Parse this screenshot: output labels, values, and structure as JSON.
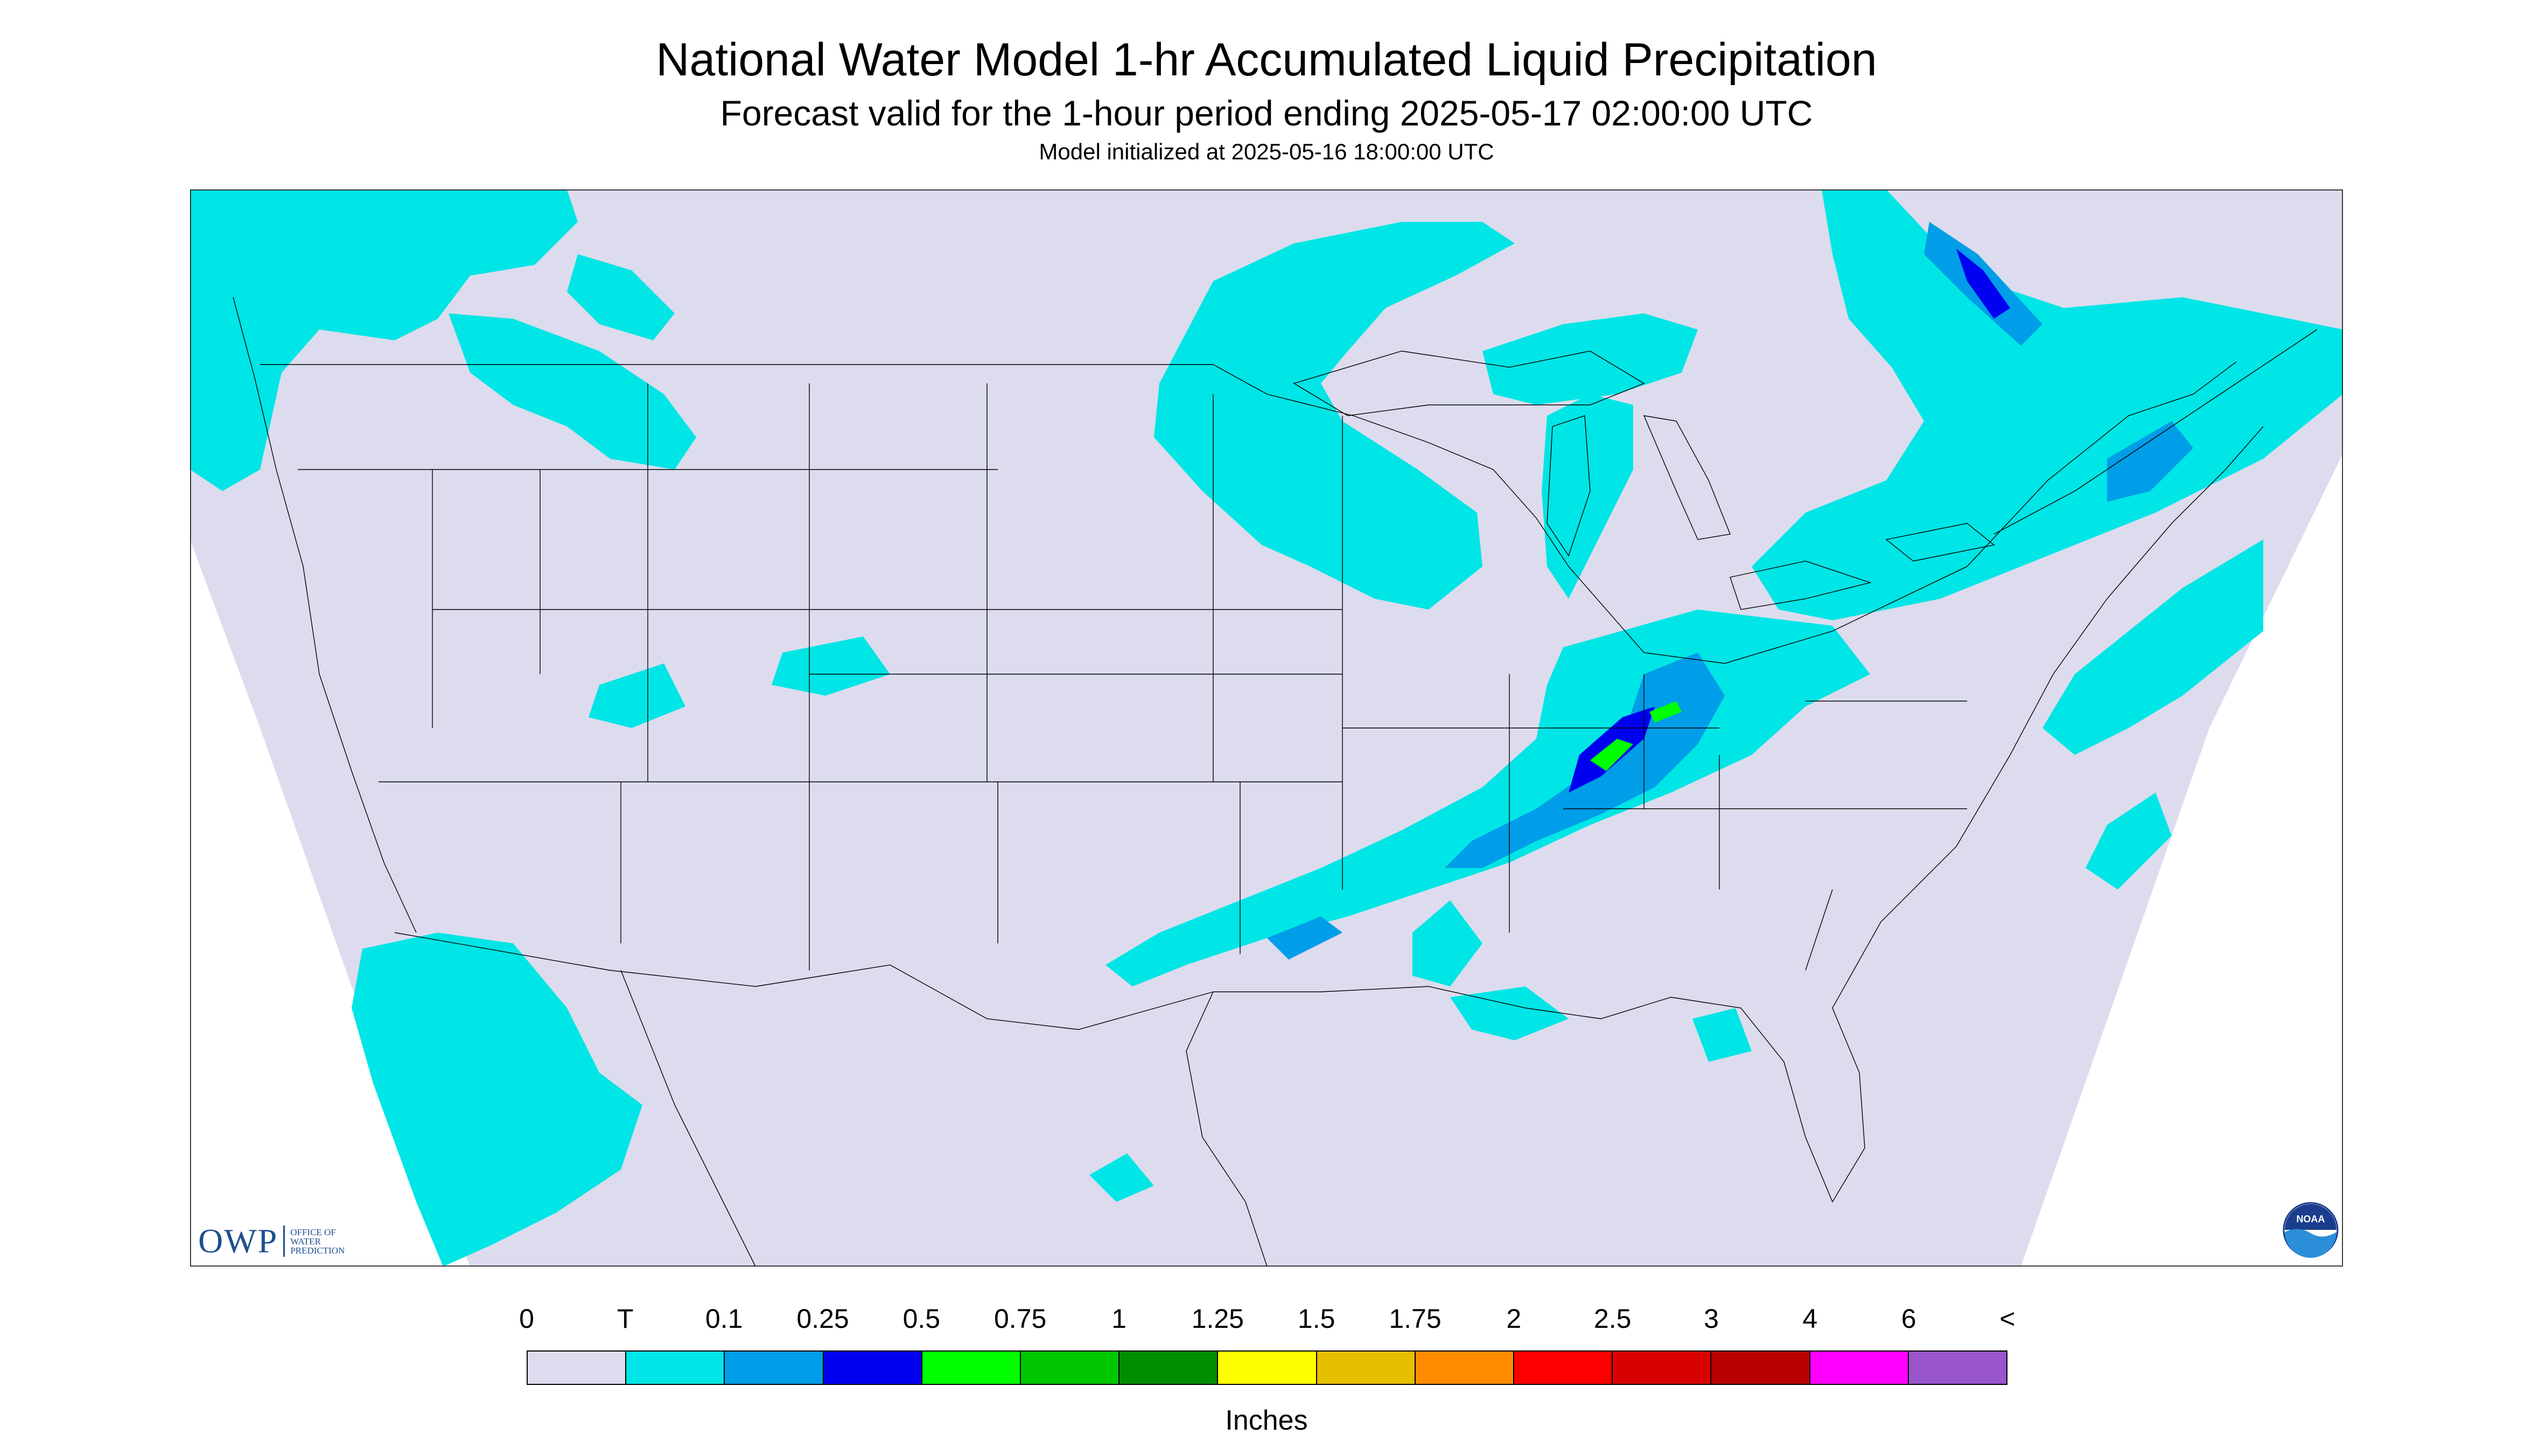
{
  "header": {
    "title": "National Water Model 1-hr Accumulated Liquid Precipitation",
    "subtitle": "Forecast valid for the 1-hour period ending 2025-05-17 02:00:00 UTC",
    "init_line": "Model initialized at 2025-05-16 18:00:00 UTC"
  },
  "logos": {
    "owp_text": "OWP",
    "owp_sub_1": "OFFICE OF",
    "owp_sub_2": "WATER",
    "owp_sub_3": "PREDICTION",
    "noaa_text": "NOAA"
  },
  "legend": {
    "units": "Inches",
    "labels": [
      "0",
      "T",
      "0.1",
      "0.25",
      "0.5",
      "0.75",
      "1",
      "1.25",
      "1.5",
      "1.75",
      "2",
      "2.5",
      "3",
      "4",
      "6",
      "<"
    ],
    "colors": [
      "#dcdcee",
      "#00e5e5",
      "#009de8",
      "#0000f0",
      "#00ff00",
      "#00c700",
      "#008e00",
      "#ffff00",
      "#e6be00",
      "#ff8c00",
      "#ff0000",
      "#d90000",
      "#b80000",
      "#ff00ff",
      "#9955cc"
    ]
  },
  "map": {
    "background_color": "#dcdcee",
    "outside_color": "#ffffff",
    "boundary_color": "#000000"
  }
}
